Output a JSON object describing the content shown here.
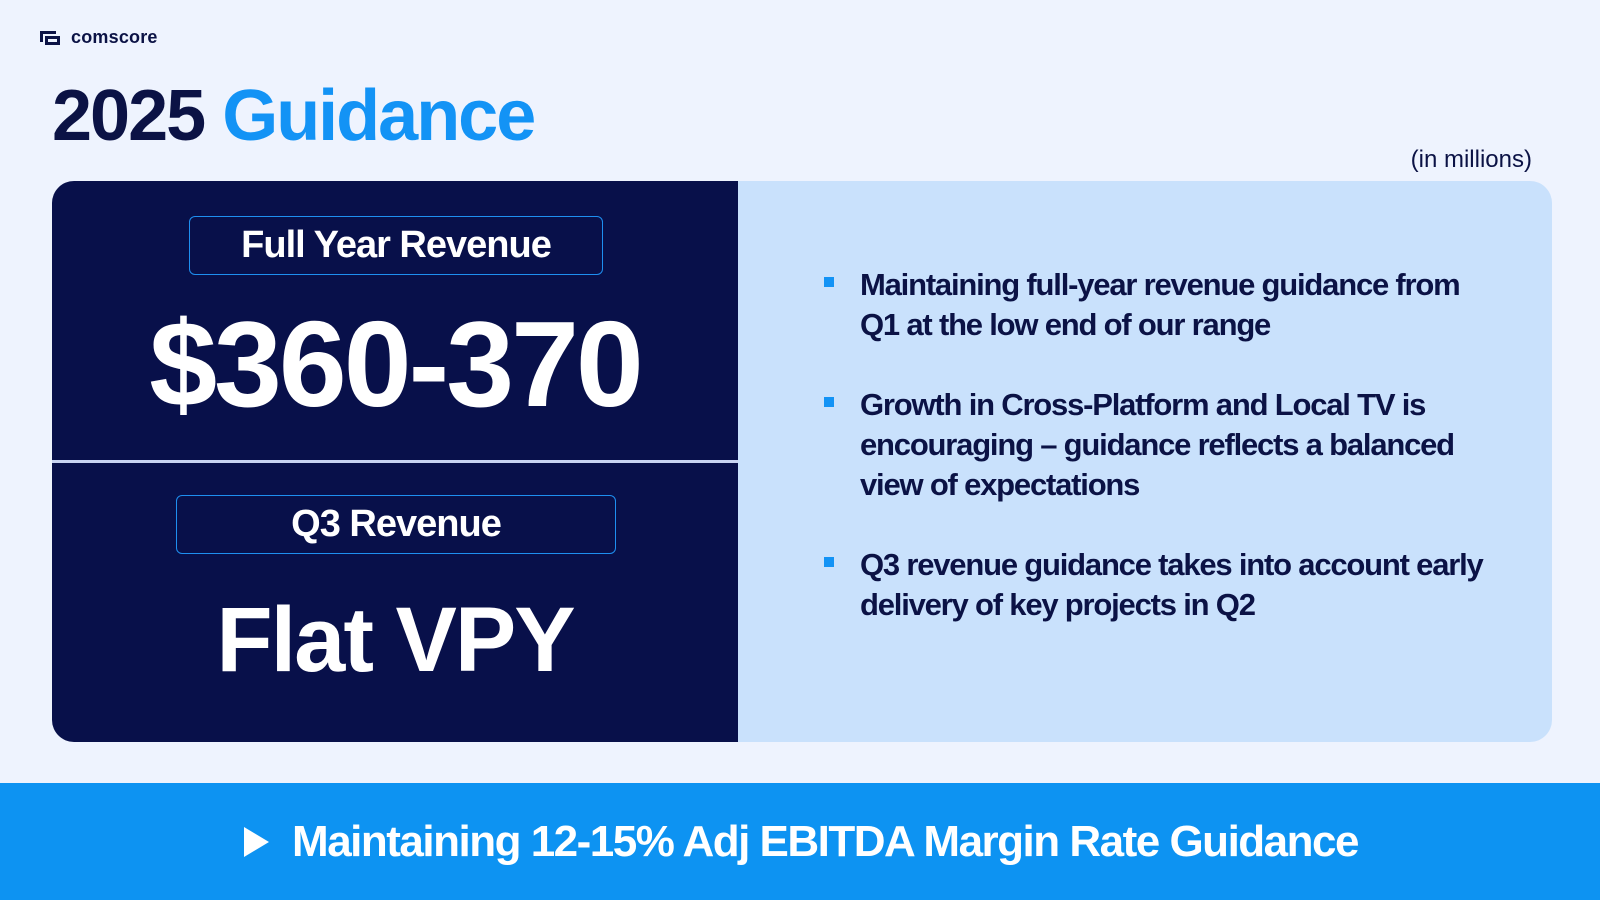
{
  "brand": {
    "name": "comscore",
    "icon": "comscore-logo-icon"
  },
  "title": {
    "year": "2025",
    "word": "Guidance"
  },
  "units_note": "(in millions)",
  "full_year": {
    "label": "Full Year Revenue",
    "value": "$360-370"
  },
  "q3": {
    "label": "Q3 Revenue",
    "value": "Flat VPY"
  },
  "bullets": [
    {
      "text": "Maintaining full-year revenue guidance from Q1 at the low end of our range"
    },
    {
      "text": "Growth in Cross-Platform and Local TV is encouraging – guidance reflects a balanced view of expectations"
    },
    {
      "text": "Q3 revenue guidance takes into account early delivery of key projects in Q2"
    }
  ],
  "banner": {
    "icon": "play-arrow-icon",
    "text": "Maintaining 12-15% Adj EBITDA Margin Rate Guidance"
  },
  "colors": {
    "navy": "#08104a",
    "accent_blue": "#1393f5",
    "light_panel": "#c9e1fc",
    "background": "#eef3fe",
    "banner": "#0d93f2"
  }
}
